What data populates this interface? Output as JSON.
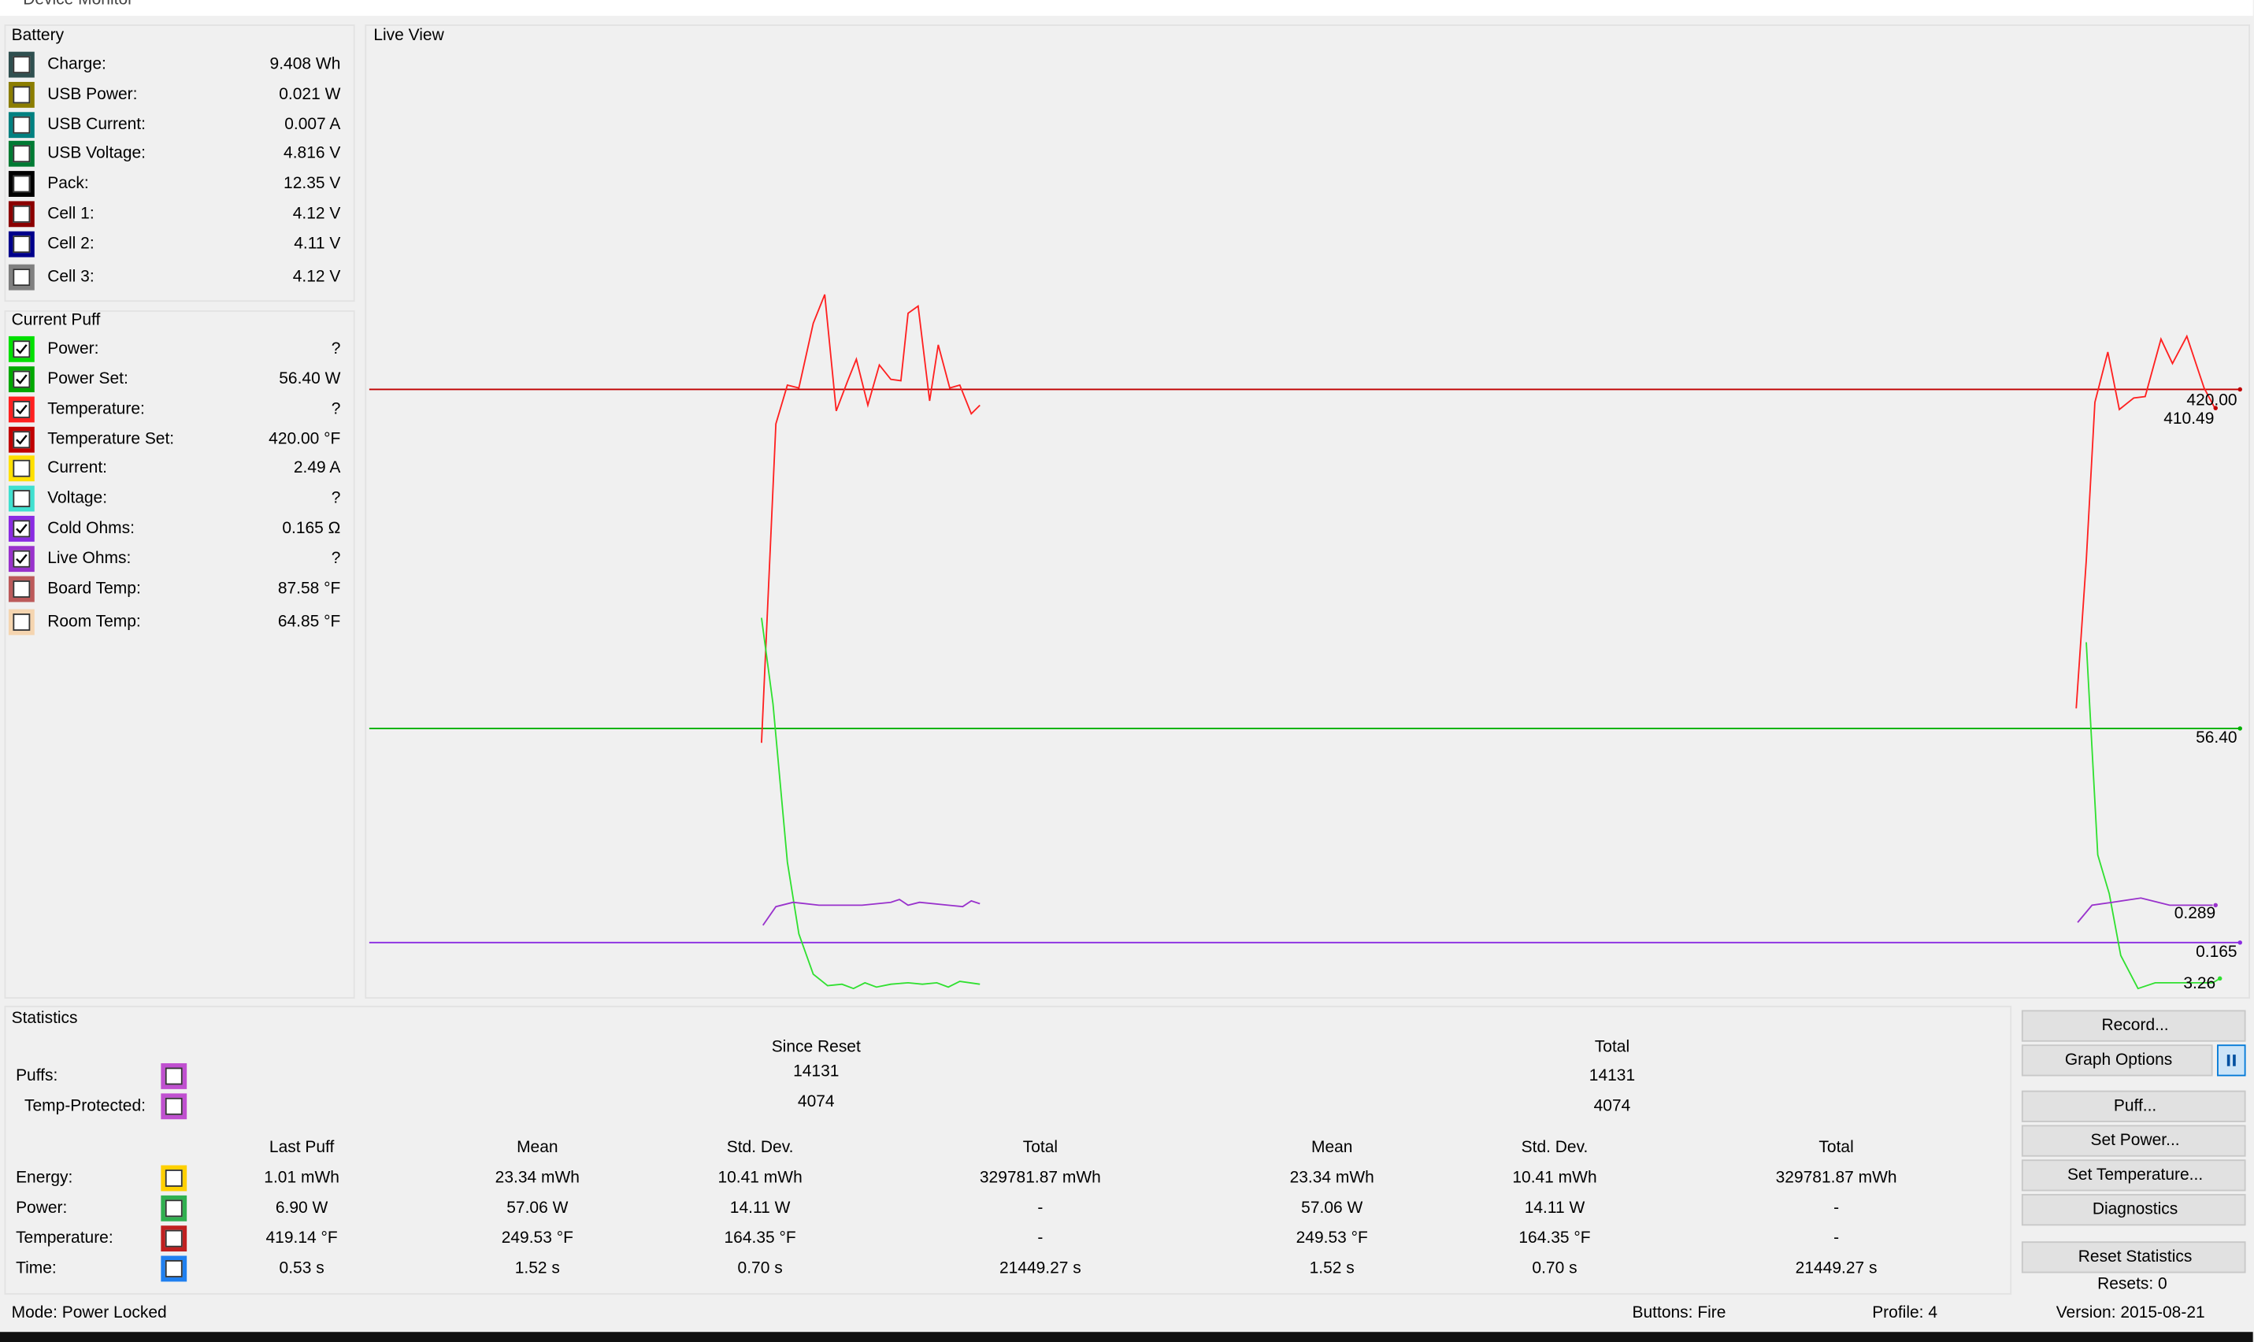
{
  "window": {
    "title": "Device Monitor"
  },
  "battery": {
    "title": "Battery",
    "rows": [
      {
        "label": "Charge:",
        "value": "9.408 Wh",
        "color": "#2f4f4f",
        "checked": false
      },
      {
        "label": "USB Power:",
        "value": "0.021 W",
        "color": "#8b7d00",
        "checked": false
      },
      {
        "label": "USB Current:",
        "value": "0.007 A",
        "color": "#008080",
        "checked": false
      },
      {
        "label": "USB Voltage:",
        "value": "4.816 V",
        "color": "#007a33",
        "checked": false
      },
      {
        "label": "Pack:",
        "value": "12.35 V",
        "color": "#000000",
        "checked": false
      },
      {
        "label": "Cell 1:",
        "value": "4.12 V",
        "color": "#8b0000",
        "checked": false
      },
      {
        "label": "Cell 2:",
        "value": "4.11 V",
        "color": "#00008b",
        "checked": false
      },
      {
        "label": "Cell 3:",
        "value": "4.12 V",
        "color": "#808080",
        "checked": false
      }
    ]
  },
  "current_puff": {
    "title": "Current Puff",
    "rows": [
      {
        "label": "Power:",
        "value": "?",
        "color": "#00e000",
        "checked": true
      },
      {
        "label": "Power Set:",
        "value": "56.40 W",
        "color": "#00a800",
        "checked": true
      },
      {
        "label": "Temperature:",
        "value": "?",
        "color": "#ff2020",
        "checked": true
      },
      {
        "label": "Temperature Set:",
        "value": "420.00 °F",
        "color": "#c00000",
        "checked": true
      },
      {
        "label": "Current:",
        "value": "2.49 A",
        "color": "#ffe000",
        "checked": false
      },
      {
        "label": "Voltage:",
        "value": "?",
        "color": "#40e0d0",
        "checked": false
      },
      {
        "label": "Cold Ohms:",
        "value": "0.165 Ω",
        "color": "#8a2be2",
        "checked": true
      },
      {
        "label": "Live Ohms:",
        "value": "?",
        "color": "#9932cc",
        "checked": true
      },
      {
        "label": "Board Temp:",
        "value": "87.58 °F",
        "color": "#bc5a5a",
        "checked": false
      },
      {
        "label": "Room Temp:",
        "value": "64.85 °F",
        "color": "#f5d5b0",
        "checked": false
      }
    ]
  },
  "live_view": {
    "title": "Live View",
    "labels": [
      "420.00",
      "410.49",
      "56.40",
      "0.289",
      "0.165",
      "3.26"
    ]
  },
  "statistics": {
    "title": "Statistics",
    "group_headers": [
      "Since Reset",
      "Total"
    ],
    "counters": [
      {
        "label": "Puffs:",
        "color": "#c050d0",
        "since_reset": "14131",
        "total": "14131"
      },
      {
        "label": "Temp-Protected:",
        "color": "#c050d0",
        "since_reset": "4074",
        "total": "4074"
      }
    ],
    "columns": [
      "Last Puff",
      "Mean",
      "Std. Dev.",
      "Total",
      "Mean",
      "Std. Dev.",
      "Total"
    ],
    "rows": [
      {
        "label": "Energy:",
        "color": "#ffd000",
        "values": [
          "1.01 mWh",
          "23.34 mWh",
          "10.41 mWh",
          "329781.87 mWh",
          "23.34 mWh",
          "10.41 mWh",
          "329781.87 mWh"
        ]
      },
      {
        "label": "Power:",
        "color": "#30b050",
        "values": [
          "6.90 W",
          "57.06 W",
          "14.11 W",
          "-",
          "57.06 W",
          "14.11 W",
          "-"
        ]
      },
      {
        "label": "Temperature:",
        "color": "#c02020",
        "values": [
          "419.14 °F",
          "249.53 °F",
          "164.35 °F",
          "-",
          "249.53 °F",
          "164.35 °F",
          "-"
        ]
      },
      {
        "label": "Time:",
        "color": "#2080f0",
        "values": [
          "0.53 s",
          "1.52 s",
          "0.70 s",
          "21449.27 s",
          "1.52 s",
          "0.70 s",
          "21449.27 s"
        ]
      }
    ]
  },
  "buttons": [
    "Record...",
    "Graph Options",
    "Puff...",
    "Set Power...",
    "Set Temperature...",
    "Diagnostics",
    "Reset Statistics"
  ],
  "resets": "Resets: 0",
  "status": {
    "mode": "Mode: Power Locked",
    "buttons": "Buttons: Fire",
    "profile": "Profile: 4",
    "version": "Version: 2015-08-21"
  }
}
